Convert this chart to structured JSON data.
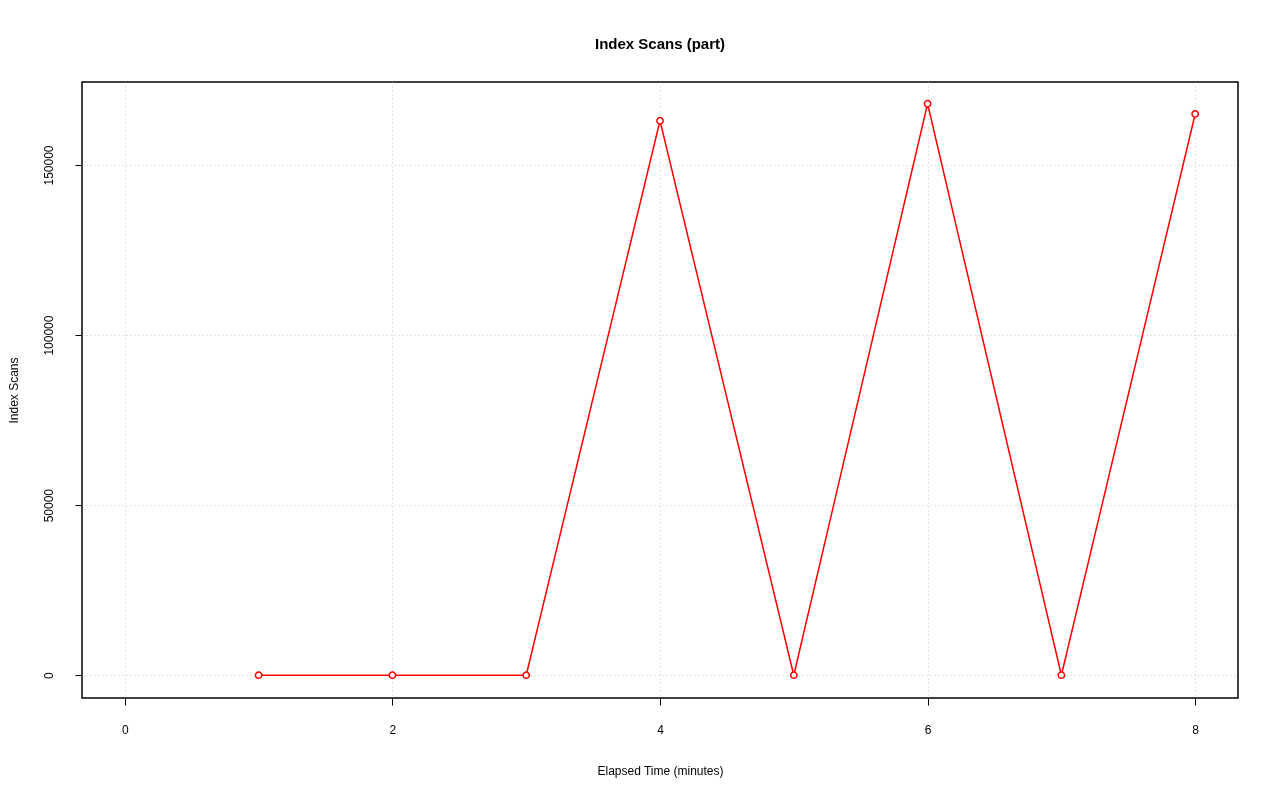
{
  "chart_data": {
    "type": "line",
    "title": "Index Scans (part)",
    "xlabel": "Elapsed Time (minutes)",
    "ylabel": "Index Scans",
    "x": [
      1,
      2,
      3,
      4,
      5,
      6,
      7,
      8
    ],
    "series": [
      {
        "color": "#ff0000",
        "values": [
          0,
          0,
          0,
          163000,
          0,
          168000,
          0,
          165000
        ]
      }
    ],
    "xlim": [
      -0.32,
      8.32
    ],
    "ylim": [
      -6700,
      174400
    ],
    "xticks": [
      0,
      2,
      4,
      6,
      8
    ],
    "yticks": [
      0,
      50000,
      100000,
      150000
    ],
    "grid": true,
    "marker": "circle",
    "line_style": "solid"
  }
}
